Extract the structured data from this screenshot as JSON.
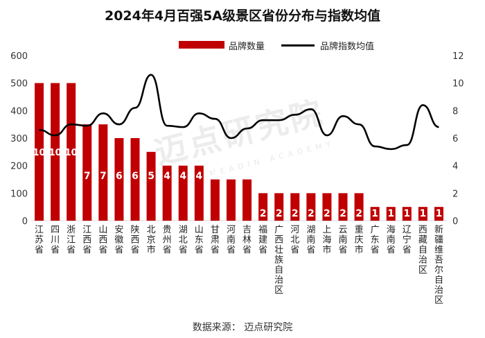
{
  "chart_data": {
    "type": "bar",
    "title": "2024年4月百强5A级景区省份分布与指数均值",
    "categories": [
      "江苏省",
      "四川省",
      "浙江省",
      "江西省",
      "山西省",
      "安徽省",
      "陕西省",
      "北京市",
      "贵州省",
      "湖北省",
      "山东省",
      "甘肃省",
      "河南省",
      "吉林省",
      "福建省",
      "广西壮族自治区",
      "河北省",
      "湖南省",
      "上海市",
      "云南省",
      "重庆市",
      "广东省",
      "海南省",
      "辽宁省",
      "西藏自治区",
      "新疆维吾尔自治区"
    ],
    "series": [
      {
        "name": "品牌数量",
        "type": "bar",
        "axis": "left",
        "color": "#c00000",
        "values": [
          10,
          10,
          10,
          7,
          7,
          6,
          6,
          5,
          4,
          4,
          4,
          3,
          3,
          3,
          2,
          2,
          2,
          2,
          2,
          2,
          2,
          1,
          1,
          1,
          1,
          1
        ],
        "labels": [
          "10",
          "10",
          "10",
          "7",
          "7",
          "6",
          "6",
          "5",
          "4",
          "4",
          "4",
          "3",
          "3",
          "3",
          "2",
          "2",
          "2",
          "2",
          "2",
          "2",
          "2",
          "1",
          "1",
          "1",
          "1",
          "1"
        ]
      },
      {
        "name": "品牌指数均值",
        "type": "line",
        "axis": "right",
        "color": "#000000",
        "values": [
          6.6,
          6.2,
          7.0,
          6.9,
          7.8,
          7.0,
          8.2,
          10.6,
          6.9,
          6.8,
          7.8,
          7.4,
          6.0,
          6.7,
          7.3,
          7.3,
          7.7,
          8.1,
          6.2,
          7.6,
          7.0,
          5.4,
          5.2,
          5.5,
          8.4,
          6.8
        ]
      }
    ],
    "yleft_lim": [
      0,
      600
    ],
    "yleft_ticks": [
      "0",
      "100",
      "200",
      "300",
      "400",
      "500",
      "600"
    ],
    "yright_lim": [
      0,
      12
    ],
    "yright_ticks": [
      "0",
      "2",
      "4",
      "6",
      "8",
      "10",
      "12"
    ],
    "legend_position": "top-center",
    "grid": false
  },
  "source_note": "数据来源：  迈点研究院",
  "watermark": {
    "main": "迈点研究院",
    "sub": "MEADIN ACADEMY"
  }
}
